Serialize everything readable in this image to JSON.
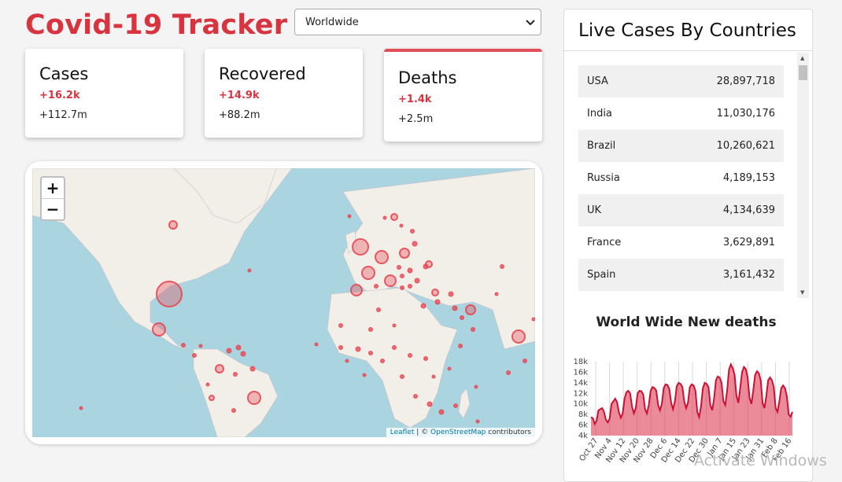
{
  "app": {
    "title": "Covid-19 Tracker"
  },
  "country_select": {
    "value": "Worldwide"
  },
  "info_cards": {
    "cases": {
      "title": "Cases",
      "today": "+16.2k",
      "total": "+112.7m"
    },
    "recovered": {
      "title": "Recovered",
      "today": "+14.9k",
      "total": "+88.2m"
    },
    "deaths": {
      "title": "Deaths",
      "today": "+1.4k",
      "total": "+2.5m"
    }
  },
  "map": {
    "zoom_in": "+",
    "zoom_out": "−",
    "attribution_leaflet": "Leaflet",
    "attribution_sep": " | © ",
    "attribution_osm": "OpenStreetMap",
    "attribution_rest": " contributors"
  },
  "live_table": {
    "title": "Live Cases By Countries",
    "rows": [
      {
        "country": "USA",
        "cases": "28,897,718"
      },
      {
        "country": "India",
        "cases": "11,030,176"
      },
      {
        "country": "Brazil",
        "cases": "10,260,621"
      },
      {
        "country": "Russia",
        "cases": "4,189,153"
      },
      {
        "country": "UK",
        "cases": "4,134,639"
      },
      {
        "country": "France",
        "cases": "3,629,891"
      },
      {
        "country": "Spain",
        "cases": "3,161,432"
      }
    ]
  },
  "chart_title": "World Wide New deaths",
  "chart_data": {
    "type": "area",
    "title": "World Wide New deaths",
    "y_ticks": [
      "4k",
      "6k",
      "8k",
      "10k",
      "12k",
      "14k",
      "16k",
      "18k"
    ],
    "ylim": [
      4000,
      18000
    ],
    "x_ticks": [
      "Oct 27",
      "Nov 4",
      "Nov 12",
      "Nov 20",
      "Nov 28",
      "Dec 6",
      "Dec 14",
      "Dec 22",
      "Dec 30",
      "Jan 7",
      "Jan 15",
      "Jan 23",
      "Jan 31",
      "Feb 8",
      "Feb 16"
    ],
    "values": [
      7500,
      7300,
      6200,
      6800,
      8800,
      9000,
      9200,
      8500,
      7000,
      6500,
      7200,
      10000,
      10500,
      11000,
      10300,
      8400,
      7400,
      8200,
      11000,
      12200,
      12500,
      12000,
      9500,
      8200,
      9200,
      12000,
      12500,
      12400,
      11800,
      9000,
      8200,
      9800,
      12500,
      13200,
      13000,
      12500,
      9800,
      8800,
      10000,
      13000,
      13700,
      13600,
      12800,
      10200,
      9000,
      10500,
      13400,
      14000,
      13800,
      13200,
      10500,
      9200,
      10200,
      13200,
      13700,
      13500,
      12500,
      8500,
      7500,
      9500,
      13000,
      14000,
      13800,
      13200,
      9800,
      8800,
      11000,
      14500,
      15200,
      15000,
      14000,
      10500,
      9800,
      12500,
      16500,
      17500,
      16800,
      15500,
      11500,
      10200,
      13000,
      16000,
      17000,
      16600,
      15000,
      11200,
      10000,
      12500,
      15500,
      16200,
      15800,
      14500,
      10200,
      9200,
      11500,
      14500,
      15000,
      14500,
      13200,
      9200,
      8500,
      10500,
      13000,
      13500,
      13000,
      11500,
      8000,
      7600,
      8500
    ]
  },
  "watermark": "Activate Windows"
}
